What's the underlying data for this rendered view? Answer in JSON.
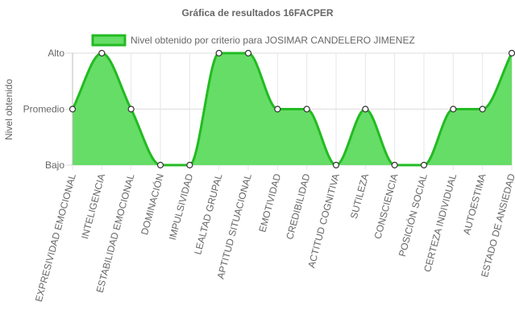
{
  "chart_data": {
    "type": "line",
    "title": "Gráfica de resultados 16FACPER",
    "ylabel": "Nivel obtenido",
    "xlabel": "",
    "y_ticks": [
      "Bajo",
      "Promedio",
      "Alto"
    ],
    "ylim": [
      0,
      2
    ],
    "categories": [
      "EXPRESIVIDAD EMOCIONAL",
      "INTELIGENCIA",
      "ESTABILIDAD EMOCIONAL",
      "DOMINACIÓN",
      "IMPULSIVIDAD",
      "LEALTAD GRUPAL",
      "APTITUD SITUACIONAL",
      "EMOTIVIDAD",
      "CREDIBILIDAD",
      "ACTITUD COGNITIVA",
      "SUTILEZA",
      "CONSCIENCIA",
      "POSICIÓN SOCIAL",
      "CERTEZA INDIVIDUAL",
      "AUTOESTIMA",
      "ESTADO DE ANSIEDAD"
    ],
    "series": [
      {
        "name": "Nivel obtenido por criterio para JOSIMAR CANDELERO JIMENEZ",
        "values": [
          1,
          2,
          1,
          0,
          0,
          2,
          2,
          1,
          1,
          0,
          1,
          0,
          0,
          1,
          1,
          2
        ]
      }
    ],
    "colors": {
      "fill": "#66dd66",
      "line": "#22bb22",
      "point_fill": "#ffffff",
      "point_stroke": "#333333"
    },
    "grid": true,
    "legend_position": "top"
  }
}
